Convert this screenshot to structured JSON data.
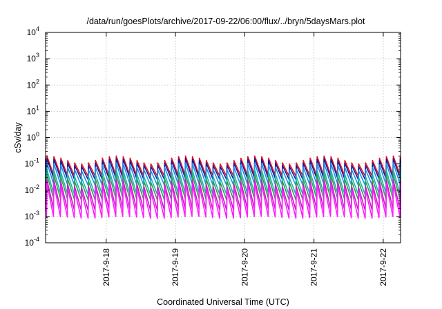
{
  "chart_data": {
    "type": "line",
    "title": "/data/run/goesPlots/archive/2017-09-22/06:00/flux/../bryn/5daysMars.plot",
    "xlabel": "Coordinated Universal Time (UTC)",
    "ylabel": "cSv/day",
    "y_scale": "log",
    "ylim": [
      0.0001,
      10000
    ],
    "y_ticks": [
      {
        "base": "10",
        "exp": "-4"
      },
      {
        "base": "10",
        "exp": "-3"
      },
      {
        "base": "10",
        "exp": "-2"
      },
      {
        "base": "10",
        "exp": "-1"
      },
      {
        "base": "10",
        "exp": "0"
      },
      {
        "base": "10",
        "exp": "1"
      },
      {
        "base": "10",
        "exp": "2"
      },
      {
        "base": "10",
        "exp": "3"
      },
      {
        "base": "10",
        "exp": "4"
      }
    ],
    "xlim": [
      "2017-09-17 03:00",
      "2017-09-22 06:00"
    ],
    "x_ticks": [
      "2017-9-18",
      "2017-9-19",
      "2017-9-20",
      "2017-9-21",
      "2017-9-22"
    ],
    "grid": true,
    "pattern": "sawtooth",
    "period_hours": 2.4,
    "series": [
      {
        "color": "#e8141e",
        "peak": 0.2,
        "trough": 0.04
      },
      {
        "color": "#1a1a9c",
        "peak": 0.16,
        "trough": 0.03
      },
      {
        "color": "#1e90e8",
        "peak": 0.11,
        "trough": 0.018
      },
      {
        "color": "#18b4b4",
        "peak": 0.06,
        "trough": 0.008
      },
      {
        "color": "#30a050",
        "peak": 0.04,
        "trough": 0.005
      },
      {
        "color": "#c01ec0",
        "peak": 0.025,
        "trough": 0.002
      },
      {
        "color": "#ff1eff",
        "peak": 0.018,
        "trough": 0.001
      }
    ]
  }
}
